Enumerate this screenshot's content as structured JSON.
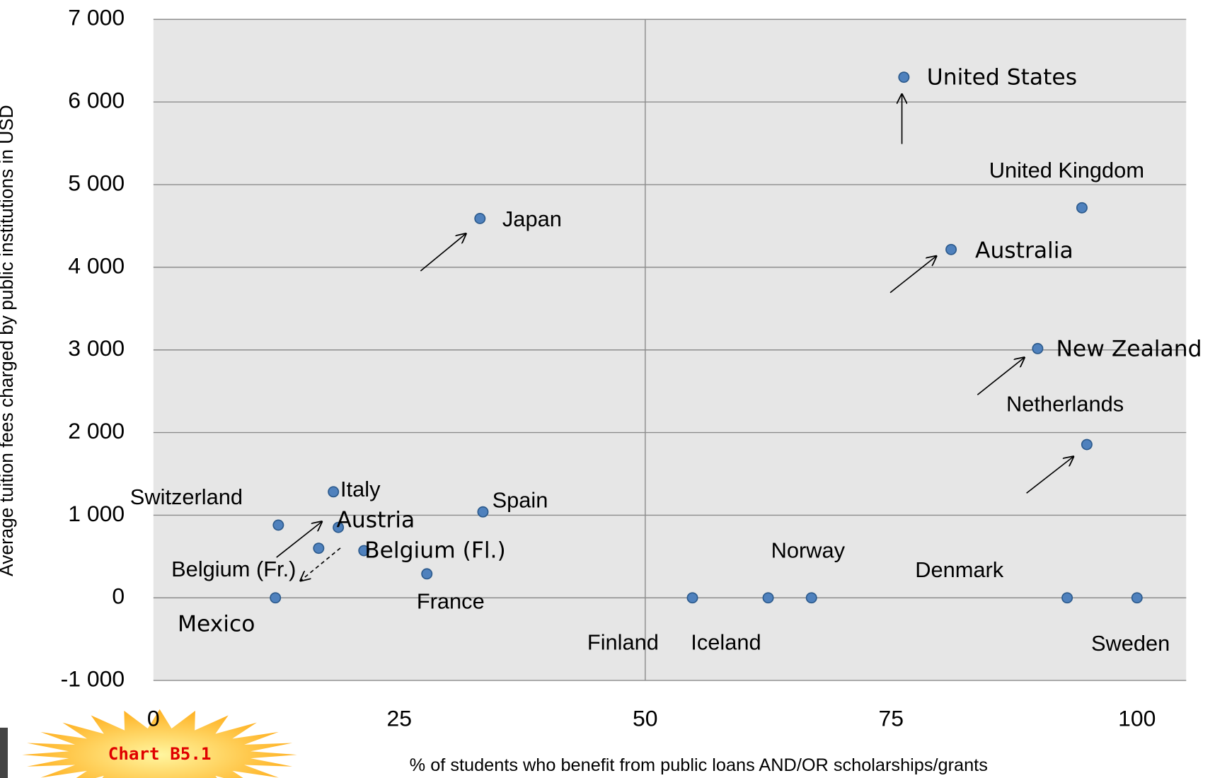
{
  "chart_data": {
    "type": "scatter",
    "badge": "Chart B5.1",
    "x_label": "% of students who benefit from public loans AND/OR scholarships/grants",
    "y_label": "Average tuition fees charged by public institutions in USD",
    "xlim": [
      0,
      105
    ],
    "ylim": [
      -1000,
      7000
    ],
    "xticks": [
      0,
      25,
      50,
      75,
      100
    ],
    "yticks": [
      {
        "value": -1000,
        "label": "-1 000"
      },
      0,
      {
        "value": 1000,
        "label": "1 000"
      },
      {
        "value": 2000,
        "label": "2 000"
      },
      {
        "value": 3000,
        "label": "3 000"
      },
      {
        "value": 4000,
        "label": "4 000"
      },
      {
        "value": 5000,
        "label": "5 000"
      },
      {
        "value": 6000,
        "label": "6 000"
      },
      {
        "value": 7000,
        "label": "7 000"
      }
    ],
    "grid": true,
    "x_reference_line": 50,
    "color": "#4f81bd",
    "labels": [
      "United States",
      "United Kingdom",
      "Japan",
      "Australia",
      "New Zealand",
      "Netherlands",
      "Italy",
      "Spain",
      "Switzerland",
      "Austria",
      "Belgium (Fr.)",
      "Belgium (Fl.)",
      "France",
      "Mexico",
      "Finland",
      "Iceland",
      "Norway",
      "Denmark",
      "Sweden"
    ],
    "x": [
      76.3,
      94.4,
      33.2,
      81.1,
      89.9,
      94.9,
      18.3,
      33.5,
      12.7,
      18.8,
      16.8,
      21.4,
      27.8,
      12.4,
      54.8,
      62.5,
      66.9,
      92.9,
      100
    ],
    "values": [
      6300,
      4720,
      4590,
      4215,
      3016,
      1855,
      1283,
      1040,
      880,
      852,
      600,
      571,
      290,
      0,
      0,
      0,
      0,
      0,
      0
    ]
  }
}
